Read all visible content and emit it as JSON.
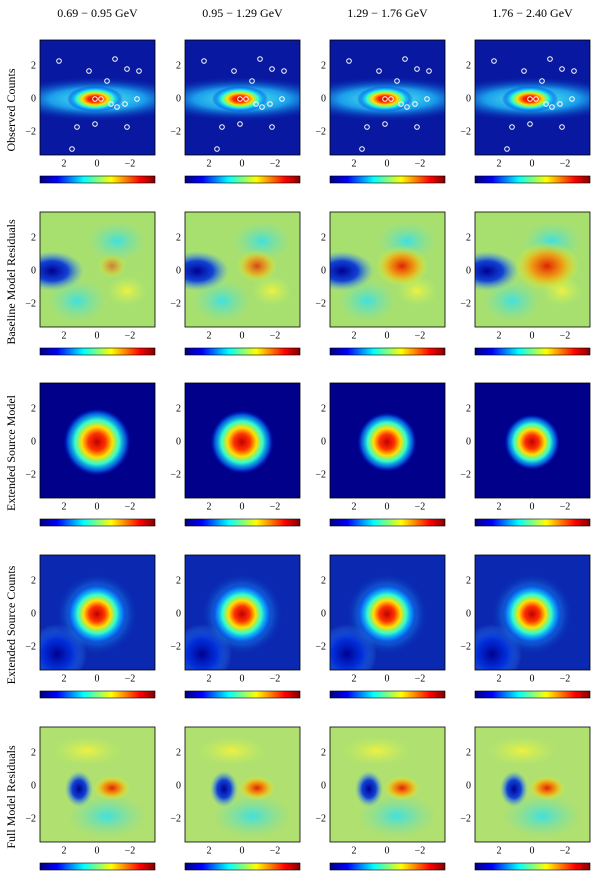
{
  "columns": [
    "0.69 − 0.95 GeV",
    "0.95 − 1.29 GeV",
    "1.29 − 1.76 GeV",
    "1.76 − 2.40 GeV"
  ],
  "rows": [
    "Observed Counts",
    "Baseline Model Residuals",
    "Extended Source Model",
    "Extended Source Counts",
    "Full Model Residuals"
  ],
  "y_ticks": [
    "2",
    "0",
    "−2"
  ],
  "x_ticks": [
    "2",
    "0",
    "−2"
  ]
}
